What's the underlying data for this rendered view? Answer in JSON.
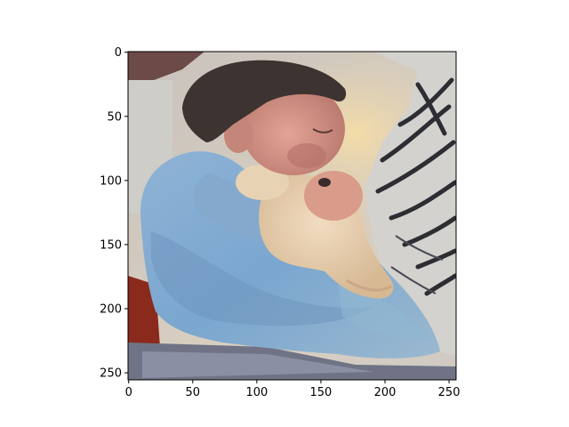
{
  "figure": {
    "image_subject": "painterly image of a sleeping toddler in a blue sleeper hugging a cream stuffed animal, striped bedding at right",
    "background_color": "#ffffff",
    "axes_frame_color": "#000000"
  },
  "axes": {
    "x_ticks": [
      "0",
      "50",
      "100",
      "150",
      "200",
      "250"
    ],
    "y_ticks": [
      "0",
      "50",
      "100",
      "150",
      "200",
      "250"
    ],
    "x_range": [
      -0.5,
      255.5
    ],
    "y_range": [
      255.5,
      -0.5
    ]
  }
}
